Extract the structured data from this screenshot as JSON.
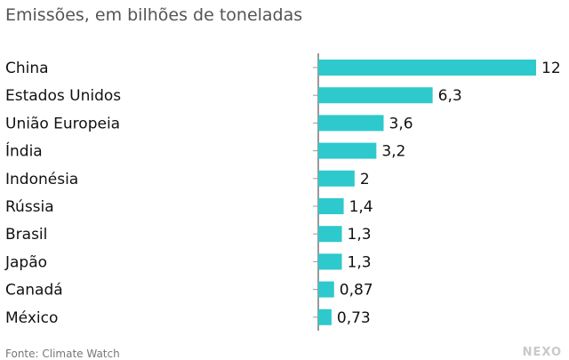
{
  "chart_data": {
    "type": "bar",
    "orientation": "horizontal",
    "title": "Emissões, em bilhões de toneladas",
    "categories": [
      "China",
      "Estados Unidos",
      "União Europeia",
      "Índia",
      "Indonésia",
      "Rússia",
      "Brasil",
      "Japão",
      "Canadá",
      "México"
    ],
    "values": [
      12,
      6.3,
      3.6,
      3.2,
      2,
      1.4,
      1.3,
      1.3,
      0.87,
      0.73
    ],
    "value_labels": [
      "12",
      "6,3",
      "3,6",
      "3,2",
      "2",
      "1,4",
      "1,3",
      "1,3",
      "0,87",
      "0,73"
    ],
    "xlabel": "",
    "ylabel": "",
    "xlim": [
      0,
      12
    ],
    "grid": false,
    "bar_color": "#2ec9cc",
    "source": "Fonte: Climate Watch",
    "logo": "NEXO"
  }
}
